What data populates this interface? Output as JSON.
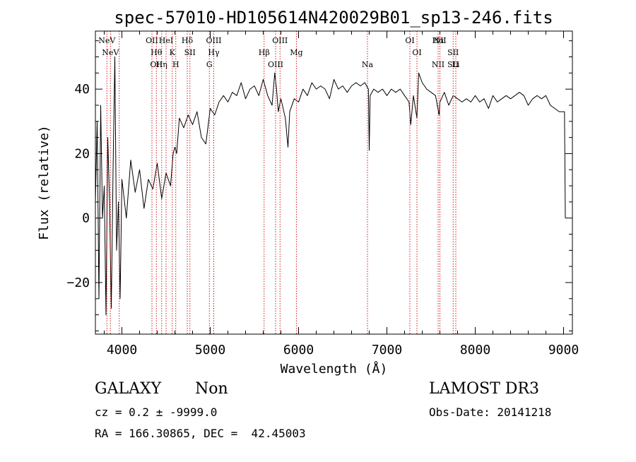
{
  "chart_data": {
    "type": "line",
    "title": "spec-57010-HD105614N420029B01_sp13-246.fits",
    "xlabel": "Wavelength (Å)",
    "ylabel": "Flux (relative)",
    "xlim": [
      3700,
      9100
    ],
    "ylim": [
      -36,
      58
    ],
    "xticks": [
      4000,
      5000,
      6000,
      7000,
      8000,
      9000
    ],
    "yticks": [
      -20,
      0,
      20,
      40
    ],
    "grid": false,
    "line_color": "#000000",
    "marker_color": "#cc0000",
    "series": [
      {
        "x": [
          3700,
          3720,
          3740,
          3760,
          3780,
          3800,
          3820,
          3840,
          3860,
          3880,
          3900,
          3920,
          3940,
          3960,
          3980,
          4000,
          4050,
          4100,
          4150,
          4200,
          4250,
          4300,
          4350,
          4400,
          4450,
          4500,
          4550,
          4580,
          4600,
          4620,
          4650,
          4700,
          4750,
          4800,
          4850,
          4900,
          4950,
          5000,
          5050,
          5100,
          5150,
          5200,
          5250,
          5300,
          5350,
          5400,
          5450,
          5500,
          5550,
          5600,
          5650,
          5700,
          5730,
          5750,
          5770,
          5800,
          5850,
          5880,
          5900,
          5950,
          6000,
          6050,
          6100,
          6150,
          6200,
          6250,
          6300,
          6350,
          6400,
          6450,
          6500,
          6550,
          6600,
          6650,
          6700,
          6750,
          6790,
          6800,
          6810,
          6850,
          6900,
          6950,
          7000,
          7050,
          7100,
          7150,
          7200,
          7250,
          7270,
          7300,
          7340,
          7360,
          7400,
          7450,
          7500,
          7550,
          7590,
          7600,
          7650,
          7700,
          7750,
          7800,
          7850,
          7900,
          7950,
          8000,
          8050,
          8100,
          8150,
          8200,
          8250,
          8300,
          8350,
          8400,
          8450,
          8500,
          8550,
          8600,
          8650,
          8700,
          8750,
          8800,
          8850,
          8900,
          8950,
          9000,
          9010,
          9020
        ],
        "y": [
          5,
          30,
          -25,
          35,
          0,
          10,
          -30,
          25,
          5,
          -28,
          15,
          50,
          -10,
          5,
          -25,
          12,
          0,
          18,
          8,
          15,
          3,
          12,
          9,
          17,
          6,
          14,
          10,
          20,
          22,
          20,
          31,
          28,
          32,
          29,
          33,
          25,
          23,
          34,
          32,
          36,
          38,
          36,
          39,
          38,
          42,
          37,
          40,
          41,
          38,
          43,
          38,
          35,
          45,
          40,
          33,
          37,
          31,
          22,
          33,
          37,
          36,
          40,
          38,
          42,
          40,
          41,
          40,
          37,
          43,
          40,
          41,
          39,
          41,
          42,
          41,
          42,
          40,
          21,
          38,
          40,
          39,
          40,
          38,
          40,
          39,
          40,
          38,
          36,
          29,
          38,
          31,
          45,
          42,
          40,
          39,
          38,
          32,
          36,
          39,
          35,
          38,
          37,
          36,
          37,
          36,
          38,
          36,
          37,
          34,
          38,
          36,
          37,
          38,
          37,
          38,
          39,
          38,
          35,
          37,
          38,
          37,
          38,
          35,
          34,
          33,
          33,
          33,
          0
        ]
      }
    ],
    "lines": [
      {
        "x": 3830,
        "labels": [
          "NeV"
        ]
      },
      {
        "x": 3870,
        "labels": [
          "NeV"
        ]
      },
      {
        "x": 3970,
        "labels": []
      },
      {
        "x": 4340,
        "labels": [
          "OII"
        ]
      },
      {
        "x": 4390,
        "labels": [
          "Hθ",
          "OII"
        ]
      },
      {
        "x": 4450,
        "labels": [
          "Hη"
        ]
      },
      {
        "x": 4500,
        "labels": [
          "HeI"
        ]
      },
      {
        "x": 4570,
        "labels": [
          "K"
        ]
      },
      {
        "x": 4610,
        "labels": [
          "H"
        ]
      },
      {
        "x": 4740,
        "labels": [
          "Hδ"
        ]
      },
      {
        "x": 4770,
        "labels": [
          "SII"
        ]
      },
      {
        "x": 4990,
        "labels": [
          "G"
        ]
      },
      {
        "x": 5040,
        "labels": [
          "OIII",
          "Hγ"
        ]
      },
      {
        "x": 5610,
        "labels": [
          "Hβ"
        ]
      },
      {
        "x": 5740,
        "labels": [
          "OIII"
        ]
      },
      {
        "x": 5790,
        "labels": [
          "OIII"
        ]
      },
      {
        "x": 5975,
        "labels": [
          "Mg"
        ]
      },
      {
        "x": 6780,
        "labels": [
          "Na"
        ]
      },
      {
        "x": 7260,
        "labels": [
          "OI"
        ]
      },
      {
        "x": 7340,
        "labels": [
          "OI"
        ]
      },
      {
        "x": 7580,
        "labels": [
          "NII",
          "Hα"
        ]
      },
      {
        "x": 7600,
        "labels": [
          "NII"
        ]
      },
      {
        "x": 7750,
        "labels": [
          "SII",
          "SII"
        ]
      },
      {
        "x": 7780,
        "labels": [
          "Li"
        ]
      }
    ]
  },
  "info": {
    "class_label": "GALAXY",
    "subclass_label": "Non",
    "survey_label": "LAMOST DR3",
    "cz_text": "cz = 0.2 ± -9999.0",
    "obs_date_text": "Obs-Date: 20141218",
    "radec_text": "RA = 166.30865, DEC =  42.45003"
  }
}
